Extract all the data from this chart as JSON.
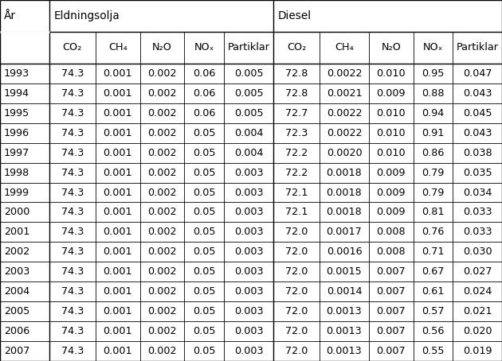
{
  "years": [
    1993,
    1994,
    1995,
    1996,
    1997,
    1998,
    1999,
    2000,
    2001,
    2002,
    2003,
    2004,
    2005,
    2006,
    2007
  ],
  "eldningsolja": {
    "CO2": [
      74.3,
      74.3,
      74.3,
      74.3,
      74.3,
      74.3,
      74.3,
      74.3,
      74.3,
      74.3,
      74.3,
      74.3,
      74.3,
      74.3,
      74.3
    ],
    "CH4": [
      0.001,
      0.001,
      0.001,
      0.001,
      0.001,
      0.001,
      0.001,
      0.001,
      0.001,
      0.001,
      0.001,
      0.001,
      0.001,
      0.001,
      0.001
    ],
    "N2O": [
      0.002,
      0.002,
      0.002,
      0.002,
      0.002,
      0.002,
      0.002,
      0.002,
      0.002,
      0.002,
      0.002,
      0.002,
      0.002,
      0.002,
      0.002
    ],
    "NOx": [
      0.06,
      0.06,
      0.06,
      0.05,
      0.05,
      0.05,
      0.05,
      0.05,
      0.05,
      0.05,
      0.05,
      0.05,
      0.05,
      0.05,
      0.05
    ],
    "Partiklar": [
      0.005,
      0.005,
      0.005,
      0.004,
      0.004,
      0.003,
      0.003,
      0.003,
      0.003,
      0.003,
      0.003,
      0.003,
      0.003,
      0.003,
      0.003
    ]
  },
  "diesel": {
    "CO2": [
      72.8,
      72.8,
      72.7,
      72.3,
      72.2,
      72.2,
      72.1,
      72.1,
      72.0,
      72.0,
      72.0,
      72.0,
      72.0,
      72.0,
      72.0
    ],
    "CH4": [
      0.0022,
      0.0021,
      0.0022,
      0.0022,
      0.002,
      0.0018,
      0.0018,
      0.0018,
      0.0017,
      0.0016,
      0.0015,
      0.0014,
      0.0013,
      0.0013,
      0.0013
    ],
    "N2O": [
      0.01,
      0.009,
      0.01,
      0.01,
      0.01,
      0.009,
      0.009,
      0.009,
      0.008,
      0.008,
      0.007,
      0.007,
      0.007,
      0.007,
      0.007
    ],
    "NOx": [
      0.95,
      0.88,
      0.94,
      0.91,
      0.86,
      0.79,
      0.79,
      0.81,
      0.76,
      0.71,
      0.67,
      0.61,
      0.57,
      0.56,
      0.55
    ],
    "Partiklar": [
      0.047,
      0.043,
      0.045,
      0.043,
      0.038,
      0.035,
      0.034,
      0.033,
      0.033,
      0.03,
      0.027,
      0.024,
      0.021,
      0.02,
      0.019
    ]
  },
  "col_headers_sub": [
    "CO₂",
    "CH₄",
    "N₂O",
    "NOₓ",
    "Partiklar"
  ],
  "group_headers": [
    "Eldningsolja",
    "Diesel"
  ],
  "year_col": "År",
  "bg_color": "#ffffff",
  "line_color": "#000000",
  "font_size": 9.2,
  "header_font_size": 9.8
}
